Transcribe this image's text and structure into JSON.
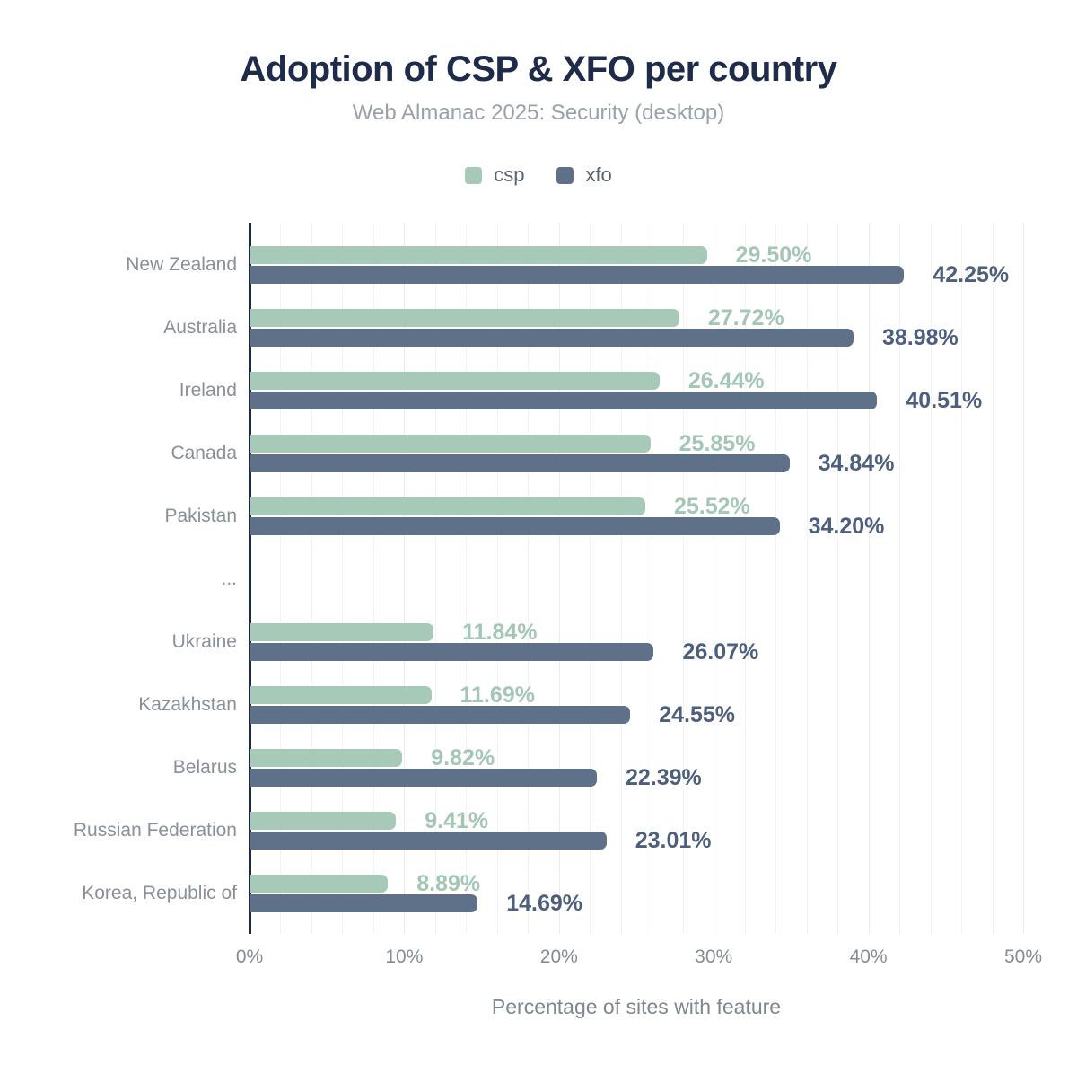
{
  "title": "Adoption of CSP & XFO per country",
  "subtitle": "Web Almanac 2025: Security (desktop)",
  "colors": {
    "background": "#ffffff",
    "title": "#1e2b4b",
    "subtitle": "#9aa1a9",
    "axis_line": "#1b2840",
    "category_label": "#8a9099",
    "tick_label": "#858c94",
    "axis_title": "#7f868e",
    "legend_text": "#5a636e",
    "grid_minor": "#f3f3f6",
    "grid_major": "#ebecf0",
    "csp_bar": "#a7c9b7",
    "xfo_bar": "#5f7089",
    "csp_value_label": "#a3c7b4",
    "xfo_value_label": "#4d5f7d"
  },
  "legend": [
    {
      "label": "csp",
      "color": "#a7c9b7"
    },
    {
      "label": "xfo",
      "color": "#5f7089"
    }
  ],
  "chart_data": {
    "type": "bar",
    "orientation": "horizontal",
    "title": "Adoption of CSP & XFO per country",
    "subtitle": "Web Almanac 2025: Security (desktop)",
    "xlabel": "Percentage of sites with feature",
    "xlim": [
      0,
      50
    ],
    "grid_step": 2,
    "grid": true,
    "legend_position": "top",
    "value_suffix": "%",
    "value_decimals": 2,
    "x_ticks": [
      {
        "label": "0%",
        "value": 0
      },
      {
        "label": "10%",
        "value": 10
      },
      {
        "label": "20%",
        "value": 20
      },
      {
        "label": "30%",
        "value": 30
      },
      {
        "label": "40%",
        "value": 40
      },
      {
        "label": "50%",
        "value": 50
      }
    ],
    "categories": [
      "New Zealand",
      "Australia",
      "Ireland",
      "Canada",
      "Pakistan",
      "...",
      "Ukraine",
      "Kazakhstan",
      "Belarus",
      "Russian Federation",
      "Korea, Republic of"
    ],
    "series": [
      {
        "name": "csp",
        "values": [
          29.5,
          27.72,
          26.44,
          25.85,
          25.52,
          null,
          11.84,
          11.69,
          9.82,
          9.41,
          8.89
        ]
      },
      {
        "name": "xfo",
        "values": [
          42.25,
          38.98,
          40.51,
          34.84,
          34.2,
          null,
          26.07,
          24.55,
          22.39,
          23.01,
          14.69
        ]
      }
    ]
  }
}
